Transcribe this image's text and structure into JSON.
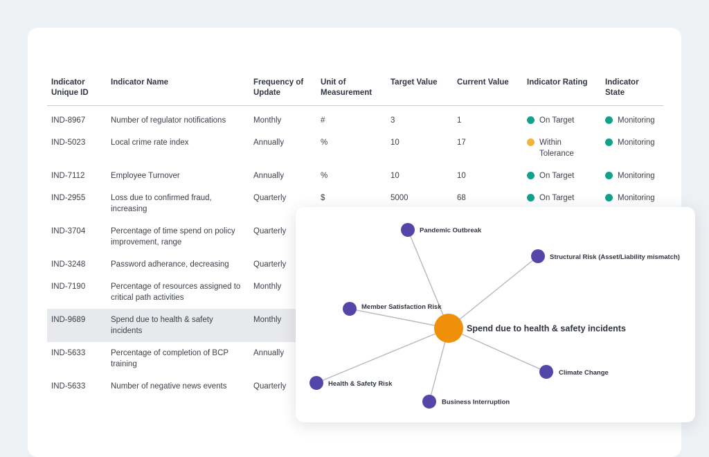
{
  "table": {
    "headers": [
      "Indicator Unique ID",
      "Indicator Name",
      "Frequency of Update",
      "Unit of Measurement",
      "Target Value",
      "Current Value",
      "Indicator Rating",
      "Indicator State"
    ],
    "rows": [
      {
        "id": "IND-8967",
        "name": "Number of regulator notifications",
        "frequency": "Monthly",
        "unit": "#",
        "target": "3",
        "current": "1",
        "rating": "On Target",
        "state": "Monitoring"
      },
      {
        "id": "IND-5023",
        "name": "Local crime rate index",
        "frequency": "Annually",
        "unit": "%",
        "target": "10",
        "current": "17",
        "rating": "Within Tolerance",
        "state": "Monitoring"
      },
      {
        "id": "IND-7112",
        "name": "Employee Turnover",
        "frequency": "Annually",
        "unit": "%",
        "target": "10",
        "current": "10",
        "rating": "On Target",
        "state": "Monitoring"
      },
      {
        "id": "IND-2955",
        "name": "Loss due to confirmed fraud, increasing",
        "frequency": "Quarterly",
        "unit": "$",
        "target": "5000",
        "current": "68",
        "rating": "On Target",
        "state": "Monitoring"
      },
      {
        "id": "IND-3704",
        "name": "Percentage of time spend on policy improvement, range",
        "frequency": "Quarterly",
        "unit": "",
        "target": "",
        "current": "",
        "rating": "",
        "state": ""
      },
      {
        "id": "IND-3248",
        "name": "Password adherance, decreasing",
        "frequency": "Quarterly",
        "unit": "",
        "target": "",
        "current": "",
        "rating": "",
        "state": ""
      },
      {
        "id": "IND-7190",
        "name": "Percentage of resources assigned to critical path activities",
        "frequency": "Monthly",
        "unit": "",
        "target": "",
        "current": "",
        "rating": "",
        "state": ""
      },
      {
        "id": "IND-9689",
        "name": "Spend due to health & safety incidents",
        "frequency": "Monthly",
        "unit": "",
        "target": "",
        "current": "",
        "rating": "",
        "state": ""
      },
      {
        "id": "IND-5633",
        "name": "Percentage of completion of BCP training",
        "frequency": "Annually",
        "unit": "",
        "target": "",
        "current": "",
        "rating": "",
        "state": ""
      },
      {
        "id": "IND-5633",
        "name": "Number of negative news events",
        "frequency": "Quarterly",
        "unit": "",
        "target": "",
        "current": "",
        "rating": "",
        "state": ""
      }
    ]
  },
  "colors": {
    "on_target": "#14a08c",
    "within_tolerance": "#f2b33d",
    "monitoring": "#14a08c",
    "center_node": "#f0900a",
    "risk_node": "#5446a8",
    "edge": "#b5b7bc"
  },
  "graph": {
    "center": "Spend due to health & safety incidents",
    "nodes": [
      {
        "label": "Pandemic Outbreak"
      },
      {
        "label": "Structural Risk (Asset/Liability mismatch)"
      },
      {
        "label": "Member Satisfaction Risk"
      },
      {
        "label": "Climate Change"
      },
      {
        "label": "Health & Safety Risk"
      },
      {
        "label": "Business Interruption"
      }
    ]
  }
}
